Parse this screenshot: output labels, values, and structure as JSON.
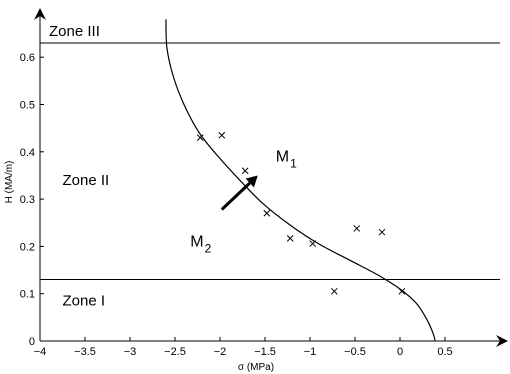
{
  "chart_data": {
    "type": "scatter",
    "xlabel": "σ (MPa)",
    "ylabel": "H (MA/m)",
    "xlim": [
      -4,
      0.9
    ],
    "ylim": [
      0,
      0.68
    ],
    "x_ticks": [
      -4,
      -3.5,
      -3,
      -2.5,
      -2,
      -1.5,
      -1,
      -0.5,
      0,
      0.5
    ],
    "x_tick_labels": [
      "−4",
      "−3.5",
      "−3",
      "−2.5",
      "−2",
      "−1.5",
      "−1",
      "−0.5",
      "0",
      "0.5"
    ],
    "y_ticks": [
      0,
      0.1,
      0.2,
      0.3,
      0.4,
      0.5,
      0.6
    ],
    "y_tick_labels": [
      "0",
      "0.1",
      "0.2",
      "0.3",
      "0.4",
      "0.5",
      "0.6"
    ],
    "grid": false,
    "zone_lines": [
      0.13,
      0.63
    ],
    "zones": [
      {
        "label": "Zone III",
        "x": -3.9,
        "y": 0.645
      },
      {
        "label": "Zone II",
        "x": -3.75,
        "y": 0.33
      },
      {
        "label": "Zone I",
        "x": -3.75,
        "y": 0.075
      }
    ],
    "points": [
      {
        "x": -2.22,
        "y": 0.43
      },
      {
        "x": -1.98,
        "y": 0.435
      },
      {
        "x": -1.72,
        "y": 0.36
      },
      {
        "x": -1.48,
        "y": 0.27
      },
      {
        "x": -1.22,
        "y": 0.217
      },
      {
        "x": -0.97,
        "y": 0.206
      },
      {
        "x": -0.73,
        "y": 0.105
      },
      {
        "x": -0.48,
        "y": 0.238
      },
      {
        "x": -0.2,
        "y": 0.23
      },
      {
        "x": 0.02,
        "y": 0.105
      }
    ],
    "curve": [
      {
        "x": -2.6,
        "y": 0.68
      },
      {
        "x": -2.59,
        "y": 0.62
      },
      {
        "x": -2.52,
        "y": 0.56
      },
      {
        "x": -2.4,
        "y": 0.5
      },
      {
        "x": -2.23,
        "y": 0.44
      },
      {
        "x": -2.02,
        "y": 0.39
      },
      {
        "x": -1.78,
        "y": 0.34
      },
      {
        "x": -1.52,
        "y": 0.29
      },
      {
        "x": -1.22,
        "y": 0.245
      },
      {
        "x": -0.9,
        "y": 0.205
      },
      {
        "x": -0.55,
        "y": 0.17
      },
      {
        "x": -0.25,
        "y": 0.14
      },
      {
        "x": 0.0,
        "y": 0.11
      },
      {
        "x": 0.18,
        "y": 0.08
      },
      {
        "x": 0.3,
        "y": 0.045
      },
      {
        "x": 0.37,
        "y": 0.015
      },
      {
        "x": 0.39,
        "y": 0.0
      }
    ],
    "arrow": {
      "from": [
        -1.98,
        0.278
      ],
      "to": [
        -1.58,
        0.35
      ]
    },
    "annotations": [
      {
        "main": "M",
        "sub": "1",
        "x": -1.38,
        "y": 0.38
      },
      {
        "main": "M",
        "sub": "2",
        "x": -2.33,
        "y": 0.2
      }
    ]
  }
}
